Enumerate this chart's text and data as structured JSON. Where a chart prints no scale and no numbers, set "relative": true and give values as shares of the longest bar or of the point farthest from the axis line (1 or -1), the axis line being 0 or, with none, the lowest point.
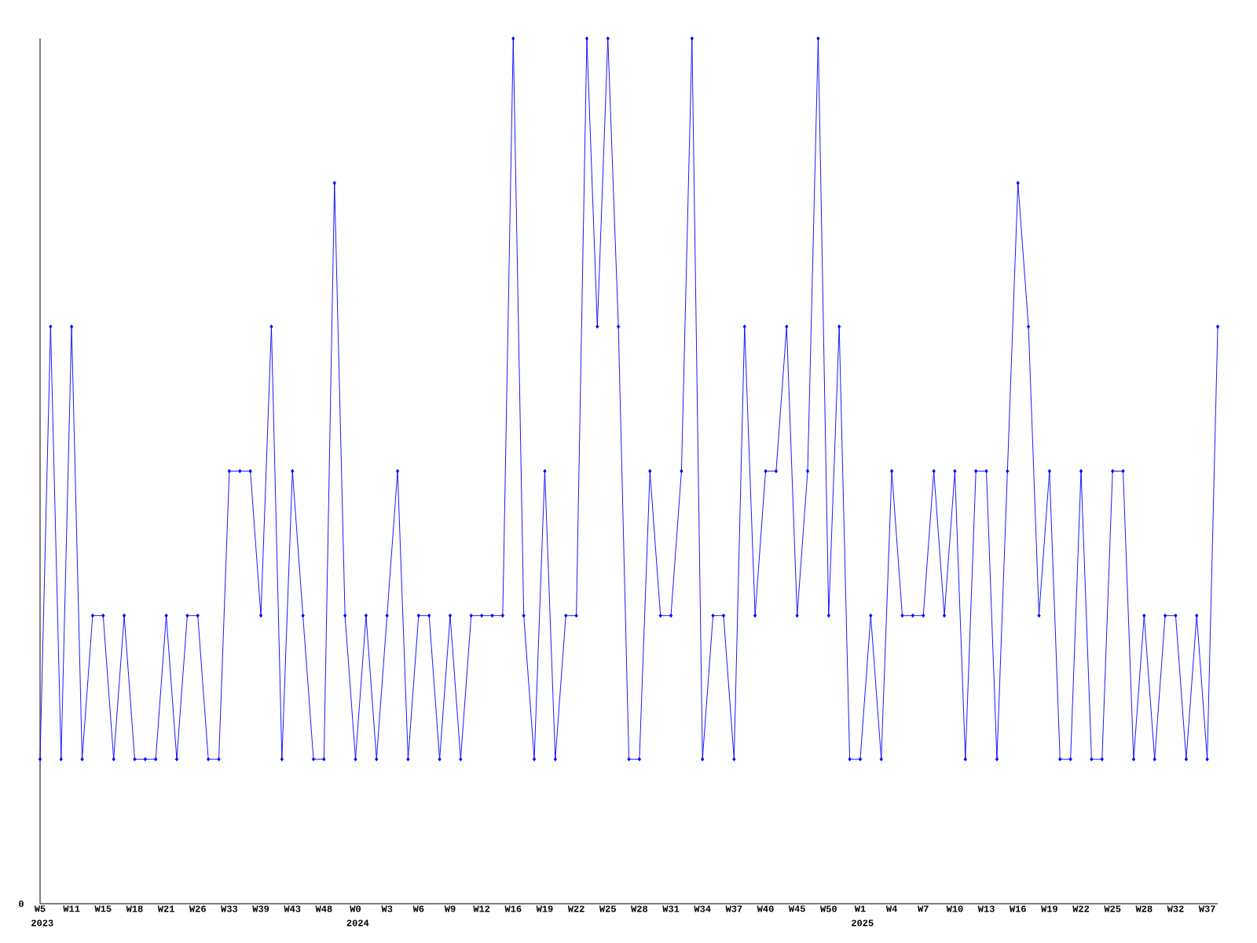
{
  "chart_data": {
    "type": "line",
    "relative": true,
    "color": "#0000ff",
    "marker": "diamond",
    "line_style": "solid",
    "categories": [
      "W5",
      null,
      null,
      "W11",
      null,
      null,
      "W15",
      null,
      null,
      "W18",
      null,
      null,
      "W21",
      null,
      null,
      "W26",
      null,
      null,
      "W33",
      null,
      null,
      "W39",
      null,
      null,
      "W43",
      null,
      null,
      "W48",
      null,
      null,
      "W0",
      null,
      null,
      "W3",
      null,
      null,
      "W6",
      null,
      null,
      "W9",
      null,
      null,
      "W12",
      null,
      null,
      "W16",
      null,
      null,
      "W19",
      null,
      null,
      "W22",
      null,
      null,
      "W25",
      null,
      null,
      "W28",
      null,
      null,
      "W31",
      null,
      null,
      "W34",
      null,
      null,
      "W37",
      null,
      null,
      "W40",
      null,
      null,
      "W45",
      null,
      null,
      "W50",
      null,
      null,
      "W1",
      null,
      null,
      "W4",
      null,
      null,
      "W7",
      null,
      null,
      "W10",
      null,
      null,
      "W13",
      null,
      null,
      "W16",
      null,
      null,
      "W19",
      null,
      null,
      "W22",
      null,
      null,
      "W25",
      null,
      null,
      "W28",
      null,
      null,
      "W32",
      null,
      null,
      "W37",
      null
    ],
    "values": [
      0.167,
      0.667,
      0.167,
      0.667,
      0.167,
      0.333,
      0.333,
      0.167,
      0.333,
      0.167,
      0.167,
      0.167,
      0.333,
      0.167,
      0.333,
      0.333,
      0.167,
      0.167,
      0.5,
      0.5,
      0.5,
      0.333,
      0.667,
      0.167,
      0.5,
      0.333,
      0.167,
      0.167,
      0.833,
      0.333,
      0.167,
      0.333,
      0.167,
      0.333,
      0.5,
      0.167,
      0.333,
      0.333,
      0.167,
      0.333,
      0.167,
      0.333,
      0.333,
      0.333,
      0.333,
      1,
      0.333,
      0.167,
      0.5,
      0.167,
      0.333,
      0.333,
      1,
      0.667,
      1,
      0.667,
      0.167,
      0.167,
      0.5,
      0.333,
      0.333,
      0.5,
      1,
      0.167,
      0.333,
      0.333,
      0.167,
      0.667,
      0.333,
      0.5,
      0.5,
      0.667,
      0.333,
      0.5,
      1,
      0.333,
      0.667,
      0.167,
      0.167,
      0.333,
      0.167,
      0.5,
      0.333,
      0.333,
      0.333,
      0.5,
      0.333,
      0.5,
      0.167,
      0.5,
      0.5,
      0.167,
      0.5,
      0.833,
      0.667,
      0.333,
      0.5,
      0.167,
      0.167,
      0.5,
      0.167,
      0.167,
      0.5,
      0.5,
      0.167,
      0.333,
      0.167,
      0.333,
      0.333,
      0.167,
      0.333,
      0.167,
      0.667
    ],
    "annotations": [
      "0",
      "2023",
      "2024",
      "2025"
    ]
  }
}
